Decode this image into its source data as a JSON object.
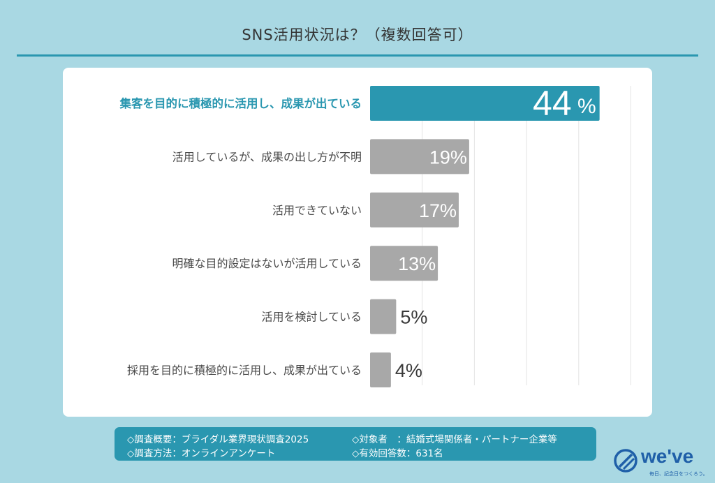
{
  "chart_data": {
    "type": "bar",
    "orientation": "horizontal",
    "title": "SNS活用状況は？（複数回答可）",
    "categories": [
      "集客を目的に積極的に活用し、成果が出ている",
      "活用しているが、成果の出し方が不明",
      "活用できていない",
      "明確な目的設定はないが活用している",
      "活用を検討している",
      "採用を目的に積極的に活用し、成果が出ている"
    ],
    "values": [
      44,
      19,
      17,
      13,
      5,
      4
    ],
    "value_labels": [
      "44",
      "19%",
      "17%",
      "13%",
      "5%",
      "4%"
    ],
    "percent_sign": "%",
    "highlight_index": 0,
    "xlim": [
      0,
      50
    ],
    "colors": {
      "highlight": "#2a97b0",
      "normal": "#a8a8a8",
      "highlight_text": "#2a97b0"
    }
  },
  "footer": {
    "summary": "◇調査概要：ブライダル業界現状調査2025",
    "method": "◇調査方法：オンラインアンケート",
    "target": "◇対象者　：結婚式場関係者・パートナー企業等",
    "responses": "◇有効回答数：631名"
  },
  "logo": {
    "name": "we've",
    "tagline": "毎日、記念日をつくろう。"
  }
}
